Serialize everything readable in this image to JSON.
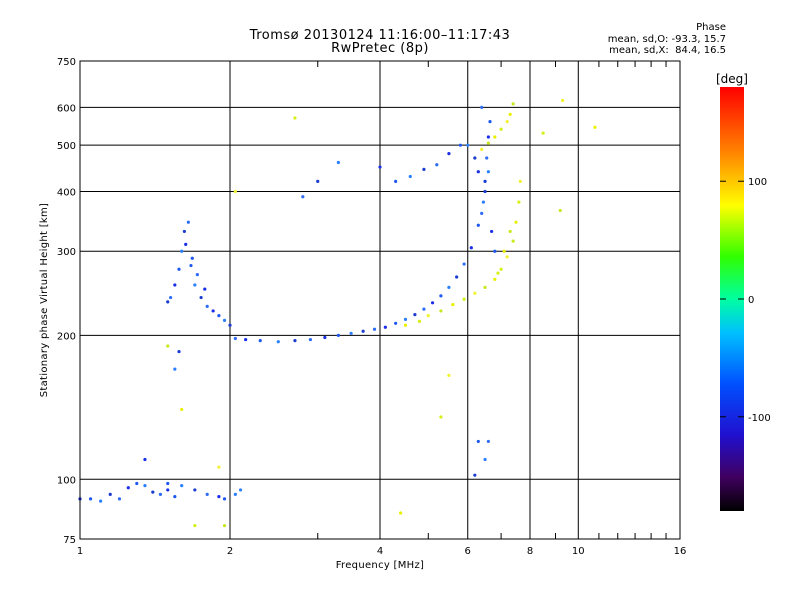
{
  "header": {
    "title": "Tromsø 20130124 11:16:00–11:17:43",
    "subtitle": "RwPretec (8p)",
    "phase_heading": "Phase",
    "phase_line_o": "mean, sd,O: -93.3, 15.7",
    "phase_line_x": "mean, sd,X:  84.4, 16.5"
  },
  "chart_data": {
    "type": "scatter",
    "title": "Tromsø 20130124 11:16:00–11:17:43",
    "subtitle": "RwPretec (8p)",
    "xlabel": "Frequency [MHz]",
    "ylabel": "Stationary phase Virtual Height [km]",
    "xscale": "log",
    "yscale": "log",
    "xlim": [
      1,
      16
    ],
    "ylim": [
      75,
      750
    ],
    "xticks": [
      1,
      2,
      4,
      6,
      8,
      10,
      16
    ],
    "yticks": [
      75,
      100,
      200,
      300,
      400,
      500,
      600,
      750
    ],
    "grid": true,
    "colorbar": {
      "label": "[deg]",
      "range": [
        -180,
        180
      ],
      "ticks": [
        100,
        0,
        -100
      ]
    },
    "series": [
      {
        "points": [
          [
            1.0,
            91
          ],
          [
            1.05,
            91
          ],
          [
            1.1,
            90
          ],
          [
            1.15,
            93
          ],
          [
            1.2,
            91
          ],
          [
            1.25,
            96
          ],
          [
            1.3,
            98
          ],
          [
            1.35,
            97
          ],
          [
            1.4,
            94
          ],
          [
            1.45,
            93
          ],
          [
            1.5,
            95
          ],
          [
            1.55,
            92
          ],
          [
            1.6,
            97
          ],
          [
            1.7,
            95
          ],
          [
            1.8,
            93
          ],
          [
            1.9,
            92
          ],
          [
            1.95,
            91
          ],
          [
            2.05,
            93
          ],
          [
            1.5,
            235
          ],
          [
            1.52,
            240
          ],
          [
            1.55,
            255
          ],
          [
            1.58,
            275
          ],
          [
            1.6,
            300
          ],
          [
            1.62,
            330
          ],
          [
            1.65,
            345
          ],
          [
            1.63,
            310
          ],
          [
            1.67,
            280
          ],
          [
            1.7,
            255
          ],
          [
            1.75,
            240
          ],
          [
            1.8,
            230
          ],
          [
            1.85,
            225
          ],
          [
            1.9,
            220
          ],
          [
            1.95,
            215
          ],
          [
            2.0,
            210
          ],
          [
            1.72,
            268
          ],
          [
            1.78,
            250
          ],
          [
            1.68,
            290
          ],
          [
            1.55,
            170
          ],
          [
            1.58,
            185
          ],
          [
            2.05,
            197
          ],
          [
            2.15,
            196
          ],
          [
            2.3,
            195
          ],
          [
            2.5,
            194
          ],
          [
            2.7,
            195
          ],
          [
            2.9,
            196
          ],
          [
            3.1,
            198
          ],
          [
            3.3,
            200
          ],
          [
            3.5,
            202
          ],
          [
            3.7,
            204
          ],
          [
            3.9,
            206
          ],
          [
            4.1,
            208
          ],
          [
            4.3,
            212
          ],
          [
            4.5,
            216
          ],
          [
            4.7,
            221
          ],
          [
            4.9,
            227
          ],
          [
            5.1,
            234
          ],
          [
            5.3,
            242
          ],
          [
            5.5,
            252
          ],
          [
            5.7,
            265
          ],
          [
            5.9,
            282
          ],
          [
            6.1,
            305
          ],
          [
            6.3,
            340
          ],
          [
            6.45,
            380
          ],
          [
            6.5,
            420
          ],
          [
            6.55,
            470
          ],
          [
            6.6,
            520
          ],
          [
            6.65,
            560
          ],
          [
            6.6,
            440
          ],
          [
            6.5,
            400
          ],
          [
            6.4,
            360
          ],
          [
            6.7,
            330
          ],
          [
            6.8,
            300
          ],
          [
            3.3,
            460
          ],
          [
            3.0,
            420
          ],
          [
            2.8,
            390
          ],
          [
            4.0,
            450
          ],
          [
            4.3,
            420
          ],
          [
            4.6,
            430
          ],
          [
            4.9,
            445
          ],
          [
            5.2,
            455
          ],
          [
            5.5,
            480
          ],
          [
            5.8,
            500
          ],
          [
            6.0,
            500
          ],
          [
            6.2,
            470
          ],
          [
            6.4,
            600
          ],
          [
            6.3,
            440
          ],
          [
            6.3,
            120
          ],
          [
            6.5,
            110
          ],
          [
            6.2,
            102
          ],
          [
            6.6,
            120
          ],
          [
            1.35,
            110
          ],
          [
            1.5,
            98
          ],
          [
            2.1,
            95
          ]
        ]
      },
      {
        "points": [
          [
            4.5,
            210
          ],
          [
            4.8,
            214
          ],
          [
            5.0,
            220
          ],
          [
            5.3,
            225
          ],
          [
            5.6,
            232
          ],
          [
            5.9,
            238
          ],
          [
            6.2,
            245
          ],
          [
            6.5,
            252
          ],
          [
            6.8,
            262
          ],
          [
            7.0,
            275
          ],
          [
            7.2,
            292
          ],
          [
            7.4,
            315
          ],
          [
            7.5,
            345
          ],
          [
            7.6,
            380
          ],
          [
            7.65,
            420
          ],
          [
            7.3,
            330
          ],
          [
            7.1,
            300
          ],
          [
            6.9,
            270
          ],
          [
            6.4,
            490
          ],
          [
            6.6,
            505
          ],
          [
            6.8,
            520
          ],
          [
            7.0,
            540
          ],
          [
            7.2,
            560
          ],
          [
            7.4,
            610
          ],
          [
            7.3,
            580
          ],
          [
            8.5,
            530
          ],
          [
            9.3,
            620
          ],
          [
            9.2,
            365
          ],
          [
            10.8,
            545
          ],
          [
            2.7,
            570
          ],
          [
            2.05,
            400
          ],
          [
            1.5,
            190
          ],
          [
            1.6,
            140
          ],
          [
            1.7,
            80
          ],
          [
            1.9,
            106
          ],
          [
            1.95,
            80
          ],
          [
            4.4,
            85
          ],
          [
            5.3,
            135
          ],
          [
            5.5,
            165
          ]
        ]
      }
    ]
  }
}
